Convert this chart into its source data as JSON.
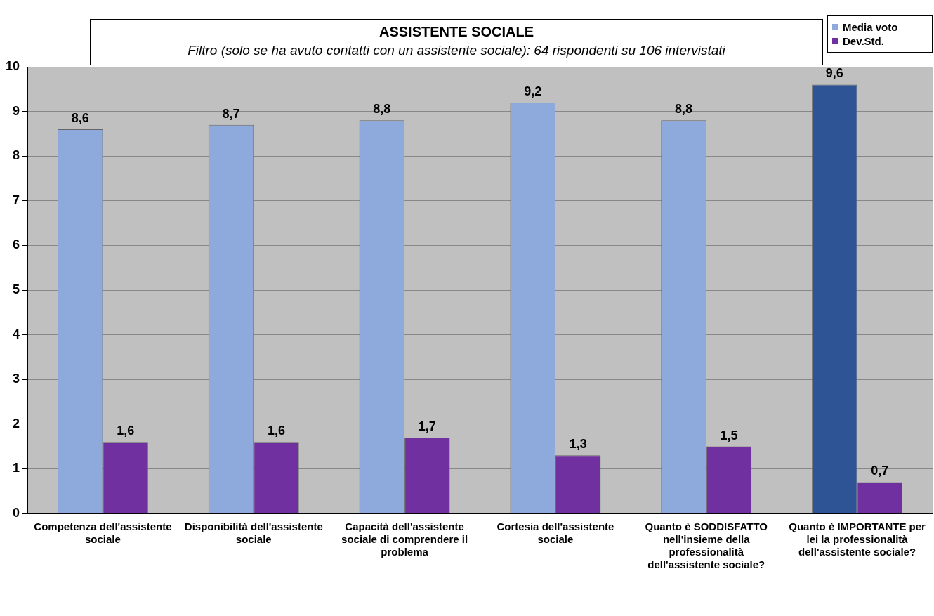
{
  "chart_data": {
    "type": "bar",
    "title": "ASSISTENTE SOCIALE",
    "subtitle": "Filtro (solo se ha avuto contatti con un assistente sociale): 64 rispondenti su 106 intervistati",
    "categories": [
      "Competenza dell'assistente sociale",
      "Disponibilità dell'assistente sociale",
      "Capacità dell'assistente sociale di comprendere il problema",
      "Cortesia dell'assistente sociale",
      "Quanto è SODDISFATTO nell'insieme della professionalità dell'assistente sociale?",
      "Quanto è IMPORTANTE per lei la professionalità dell'assistente sociale?"
    ],
    "series": [
      {
        "name": "Media voto",
        "color": "#8eaadc",
        "colors": [
          "#8eaadc",
          "#8eaadc",
          "#8eaadc",
          "#8eaadc",
          "#8eaadc",
          "#2f5496"
        ],
        "values": [
          8.6,
          8.7,
          8.8,
          9.2,
          8.8,
          9.6
        ],
        "value_labels": [
          "8,6",
          "8,7",
          "8,8",
          "9,2",
          "8,8",
          "9,6"
        ]
      },
      {
        "name": "Dev.Std.",
        "color": "#7030a0",
        "values": [
          1.6,
          1.6,
          1.7,
          1.3,
          1.5,
          0.7
        ],
        "value_labels": [
          "1,6",
          "1,6",
          "1,7",
          "1,3",
          "1,5",
          "0,7"
        ]
      }
    ],
    "ylim": [
      0,
      10
    ],
    "yticks": [
      0,
      1,
      2,
      3,
      4,
      5,
      6,
      7,
      8,
      9,
      10
    ],
    "grid": "y",
    "legend": "top right"
  }
}
